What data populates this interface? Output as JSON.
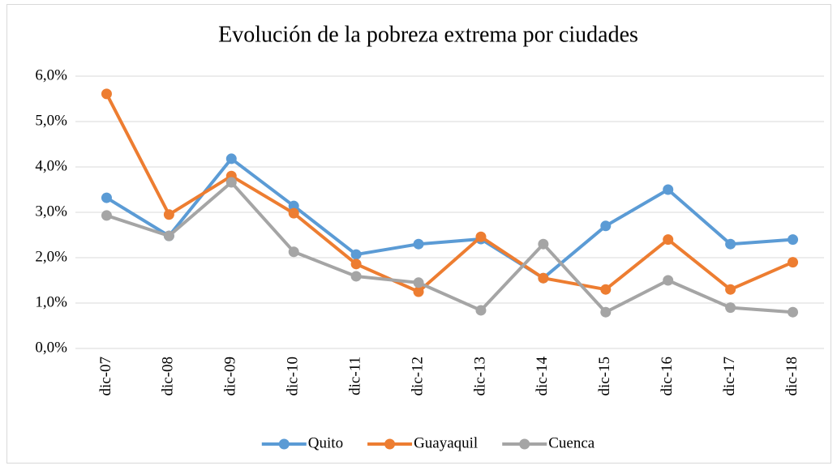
{
  "chart_data": {
    "type": "line",
    "title": "Evolución de la pobreza extrema por ciudades",
    "categories": [
      "dic-07",
      "dic-08",
      "dic-09",
      "dic-10",
      "dic-11",
      "dic-12",
      "dic-13",
      "dic-14",
      "dic-15",
      "dic-16",
      "dic-17",
      "dic-18"
    ],
    "series": [
      {
        "name": "Quito",
        "color": "#5b9bd5",
        "values": [
          3.32,
          2.48,
          4.18,
          3.14,
          2.07,
          2.3,
          2.41,
          1.55,
          2.7,
          3.5,
          2.3,
          2.4
        ]
      },
      {
        "name": "Guayaquil",
        "color": "#ed7d31",
        "values": [
          5.61,
          2.95,
          3.8,
          2.98,
          1.86,
          1.25,
          2.46,
          1.55,
          1.3,
          2.4,
          1.3,
          1.9
        ]
      },
      {
        "name": "Cuenca",
        "color": "#a5a5a5",
        "values": [
          2.93,
          2.48,
          3.66,
          2.13,
          1.59,
          1.45,
          0.84,
          2.3,
          0.8,
          1.5,
          0.9,
          0.8
        ]
      }
    ],
    "ylim": [
      0,
      6
    ],
    "yticks": [
      {
        "value": 0,
        "label": "0,0%"
      },
      {
        "value": 1,
        "label": "1,0%"
      },
      {
        "value": 2,
        "label": "2,0%"
      },
      {
        "value": 3,
        "label": "3,0%"
      },
      {
        "value": 4,
        "label": "4,0%"
      },
      {
        "value": 5,
        "label": "5,0%"
      },
      {
        "value": 6,
        "label": "6,0%"
      }
    ],
    "grid": true,
    "legend": "bottom"
  }
}
